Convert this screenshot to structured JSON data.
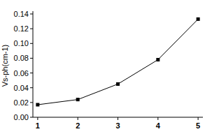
{
  "chart_data": {
    "type": "line",
    "ylabel": "Vs-ph(cm-1)",
    "x": [
      1,
      2,
      3,
      4,
      5
    ],
    "values": [
      0.017,
      0.024,
      0.045,
      0.078,
      0.133
    ],
    "color": "#000000",
    "marker": "square",
    "line_style": "solid",
    "xlim": [
      0.88,
      5.12
    ],
    "xticks": [
      1,
      2,
      3,
      4,
      5
    ],
    "ylim": [
      0,
      0.14
    ],
    "yticks": [
      {
        "value": 0,
        "label": "0.00"
      },
      {
        "value": 0.02,
        "label": "0.02"
      },
      {
        "value": 0.04,
        "label": "0.04"
      },
      {
        "value": 0.06,
        "label": "0.06"
      },
      {
        "value": 0.08,
        "label": "0.08"
      },
      {
        "value": 0.1,
        "label": "0.10"
      },
      {
        "value": 0.12,
        "label": "0.12"
      },
      {
        "value": 0.14,
        "label": "0.14"
      }
    ],
    "grid": false
  }
}
